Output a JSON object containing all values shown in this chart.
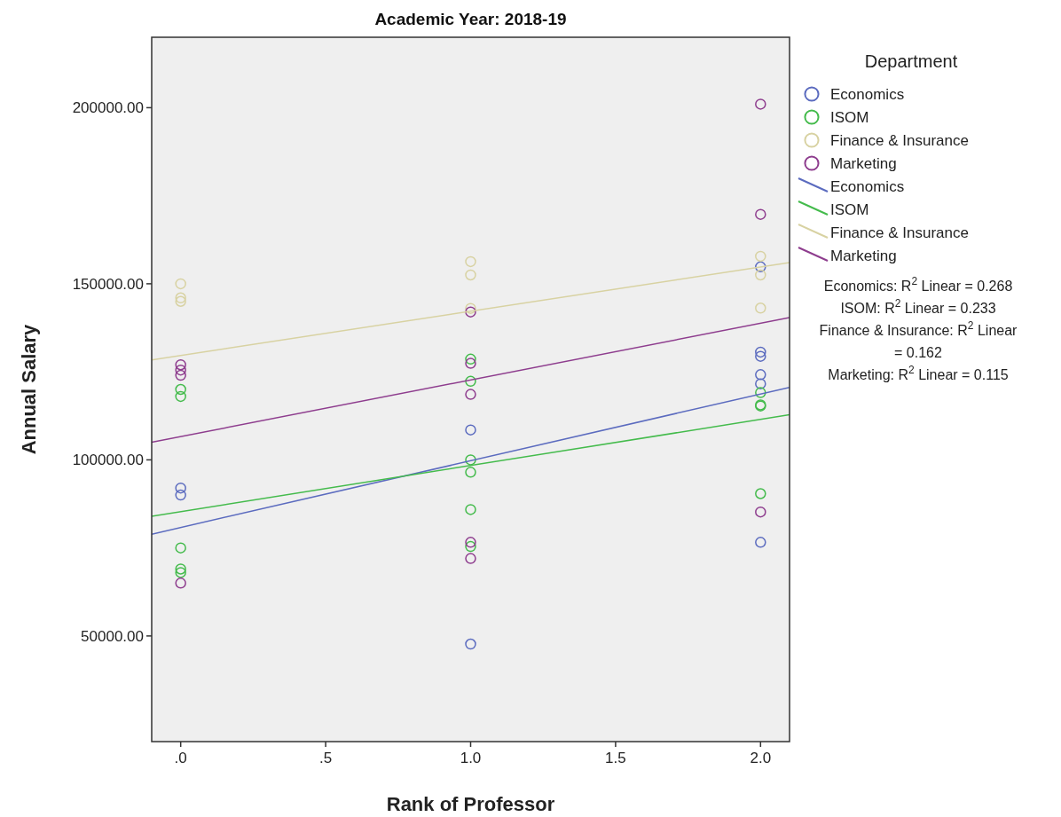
{
  "chart_data": {
    "type": "scatter",
    "title": "Academic Year: 2018-19",
    "xlabel": "Rank of Professor",
    "ylabel": "Annual Salary",
    "legend_title": "Department",
    "legend": "right",
    "marker": "circle",
    "grid": false,
    "xlim": [
      -0.1,
      2.1
    ],
    "xticks": [
      {
        "value": 0,
        "label": ".0"
      },
      {
        "value": 0.5,
        "label": ".5"
      },
      {
        "value": 1,
        "label": "1.0"
      },
      {
        "value": 1.5,
        "label": "1.5"
      },
      {
        "value": 2,
        "label": "2.0"
      }
    ],
    "ylim": [
      20000,
      220000
    ],
    "yticks": [
      {
        "value": 50000,
        "label": "50000.00"
      },
      {
        "value": 100000,
        "label": "100000.00"
      },
      {
        "value": 150000,
        "label": "150000.00"
      },
      {
        "value": 200000,
        "label": "200000.00"
      }
    ],
    "series": [
      {
        "name": "Economics",
        "type": "scatter",
        "color": "#5b6bbf",
        "x": [
          0,
          0,
          1,
          1,
          2,
          2,
          2,
          2,
          2,
          2
        ],
        "values": [
          92000,
          90000,
          108500,
          47700,
          154800,
          130600,
          129400,
          124200,
          121600,
          76600
        ]
      },
      {
        "name": "ISOM",
        "type": "scatter",
        "color": "#44bb4c",
        "x": [
          0,
          0,
          0,
          0,
          0,
          1,
          1,
          1,
          1,
          1,
          1,
          2,
          2,
          2,
          2
        ],
        "values": [
          120000,
          118000,
          75000,
          69000,
          68000,
          128600,
          122300,
          100000,
          96500,
          85900,
          75400,
          119100,
          115600,
          115300,
          90400
        ]
      },
      {
        "name": "Finance & Insurance",
        "type": "scatter",
        "color": "#d8d2a2",
        "x": [
          0,
          0,
          0,
          1,
          1,
          1,
          2,
          2,
          2
        ],
        "values": [
          150000,
          146000,
          145000,
          156300,
          152500,
          143000,
          157800,
          152500,
          143100
        ]
      },
      {
        "name": "Marketing",
        "type": "scatter",
        "color": "#8e3d8e",
        "x": [
          0,
          0,
          0,
          0,
          1,
          1,
          1,
          1,
          1,
          2,
          2,
          2
        ],
        "values": [
          127000,
          125500,
          124000,
          65000,
          142000,
          127400,
          118600,
          76600,
          72000,
          201000,
          169700,
          85200
        ]
      },
      {
        "name": "Economics",
        "type": "line",
        "marker": "none",
        "color": "#5b6bbf",
        "x": [
          -0.1,
          2.1
        ],
        "values": [
          78900,
          120600
        ]
      },
      {
        "name": "ISOM",
        "type": "line",
        "marker": "none",
        "color": "#44bb4c",
        "x": [
          -0.1,
          2.1
        ],
        "values": [
          84000,
          112800
        ]
      },
      {
        "name": "Finance & Insurance",
        "type": "line",
        "marker": "none",
        "color": "#d8d2a2",
        "x": [
          -0.1,
          2.1
        ],
        "values": [
          128400,
          156000
        ]
      },
      {
        "name": "Marketing",
        "type": "line",
        "marker": "none",
        "color": "#8e3d8e",
        "x": [
          -0.1,
          2.1
        ],
        "values": [
          105000,
          140400
        ]
      }
    ],
    "annotations": [
      "Economics: R$^{2}$ Linear = 0.268",
      "ISOM: R$^{2}$ Linear = 0.233",
      "Finance & Insurance: R$^{2}$ Linear = 0.162",
      "Marketing: R$^{2}$ Linear = 0.115"
    ]
  }
}
